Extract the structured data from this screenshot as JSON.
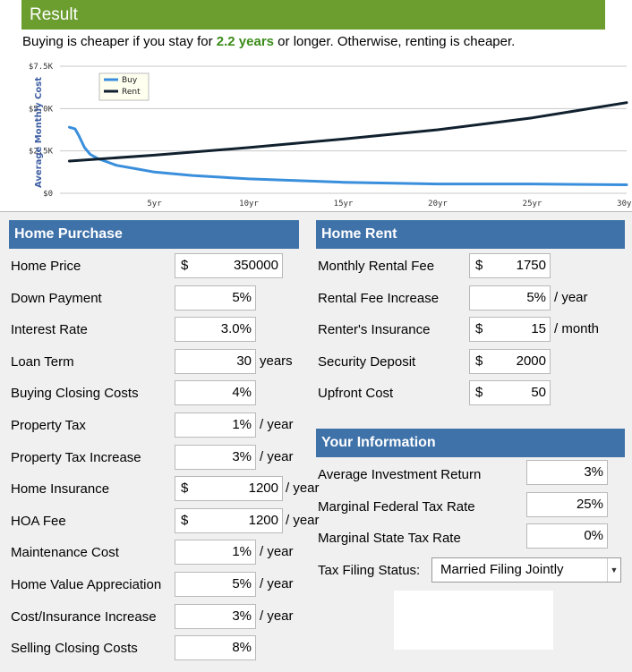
{
  "result": {
    "title": "Result",
    "summary_before": "Buying is cheaper if you stay for ",
    "summary_highlight": "2.2 years",
    "summary_after": " or longer. Otherwise, renting is cheaper."
  },
  "colors": {
    "buy": "#3a8fdc",
    "rent": "#10202e",
    "header_green": "#6b9e2f",
    "section_blue": "#3f72a9"
  },
  "chart_data": {
    "type": "line",
    "ylabel": "Average Monthly Cost",
    "y_ticks": [
      "$0",
      "$2.5K",
      "$5.0K",
      "$7.5K"
    ],
    "x_ticks": [
      "5yr",
      "10yr",
      "15yr",
      "20yr",
      "25yr",
      "30yr"
    ],
    "ylim": [
      0,
      7500
    ],
    "xlim": [
      0,
      30
    ],
    "legend": [
      "Buy",
      "Rent"
    ],
    "legend_position": "top-left",
    "series": [
      {
        "name": "Buy",
        "x": [
          0.5,
          0.8,
          1,
          1.3,
          1.6,
          2,
          2.5,
          3,
          4,
          5,
          7,
          10,
          15,
          20,
          25,
          30
        ],
        "y": [
          3900,
          3800,
          3400,
          2700,
          2300,
          2050,
          1850,
          1650,
          1450,
          1250,
          1050,
          850,
          650,
          550,
          550,
          500
        ]
      },
      {
        "name": "Rent",
        "x": [
          0.5,
          5,
          10,
          15,
          20,
          25,
          30
        ],
        "y": [
          1900,
          2250,
          2700,
          3200,
          3750,
          4450,
          5350
        ]
      }
    ]
  },
  "home_purchase": {
    "title": "Home Purchase",
    "fields": [
      {
        "label": "Home Price",
        "currency": "$",
        "value": "350000",
        "unit": ""
      },
      {
        "label": "Down Payment",
        "currency": "",
        "value": "5%",
        "unit": ""
      },
      {
        "label": "Interest Rate",
        "currency": "",
        "value": "3.0%",
        "unit": ""
      },
      {
        "label": "Loan Term",
        "currency": "",
        "value": "30",
        "unit": "years"
      },
      {
        "label": "Buying Closing Costs",
        "currency": "",
        "value": "4%",
        "unit": ""
      },
      {
        "label": "Property Tax",
        "currency": "",
        "value": "1%",
        "unit": "/ year"
      },
      {
        "label": "Property Tax Increase",
        "currency": "",
        "value": "3%",
        "unit": "/ year"
      },
      {
        "label": "Home Insurance",
        "currency": "$",
        "value": "1200",
        "unit": "/ year"
      },
      {
        "label": "HOA Fee",
        "currency": "$",
        "value": "1200",
        "unit": "/ year"
      },
      {
        "label": "Maintenance Cost",
        "currency": "",
        "value": "1%",
        "unit": "/ year"
      },
      {
        "label": "Home Value Appreciation",
        "currency": "",
        "value": "5%",
        "unit": "/ year"
      },
      {
        "label": "Cost/Insurance Increase",
        "currency": "",
        "value": "3%",
        "unit": "/ year"
      },
      {
        "label": "Selling Closing Costs",
        "currency": "",
        "value": "8%",
        "unit": ""
      }
    ]
  },
  "home_rent": {
    "title": "Home Rent",
    "fields": [
      {
        "label": "Monthly Rental Fee",
        "currency": "$",
        "value": "1750",
        "unit": ""
      },
      {
        "label": "Rental Fee Increase",
        "currency": "",
        "value": "5%",
        "unit": "/ year"
      },
      {
        "label": "Renter's Insurance",
        "currency": "$",
        "value": "15",
        "unit": "/ month"
      },
      {
        "label": "Security Deposit",
        "currency": "$",
        "value": "2000",
        "unit": ""
      },
      {
        "label": "Upfront Cost",
        "currency": "$",
        "value": "50",
        "unit": ""
      }
    ]
  },
  "your_information": {
    "title": "Your Information",
    "fields": [
      {
        "label": "Average Investment Return",
        "value": "3%"
      },
      {
        "label": "Marginal Federal Tax Rate",
        "value": "25%"
      },
      {
        "label": "Marginal State Tax Rate",
        "value": "0%"
      }
    ],
    "filing_label": "Tax Filing Status:",
    "filing_value": "Married Filing Jointly"
  }
}
